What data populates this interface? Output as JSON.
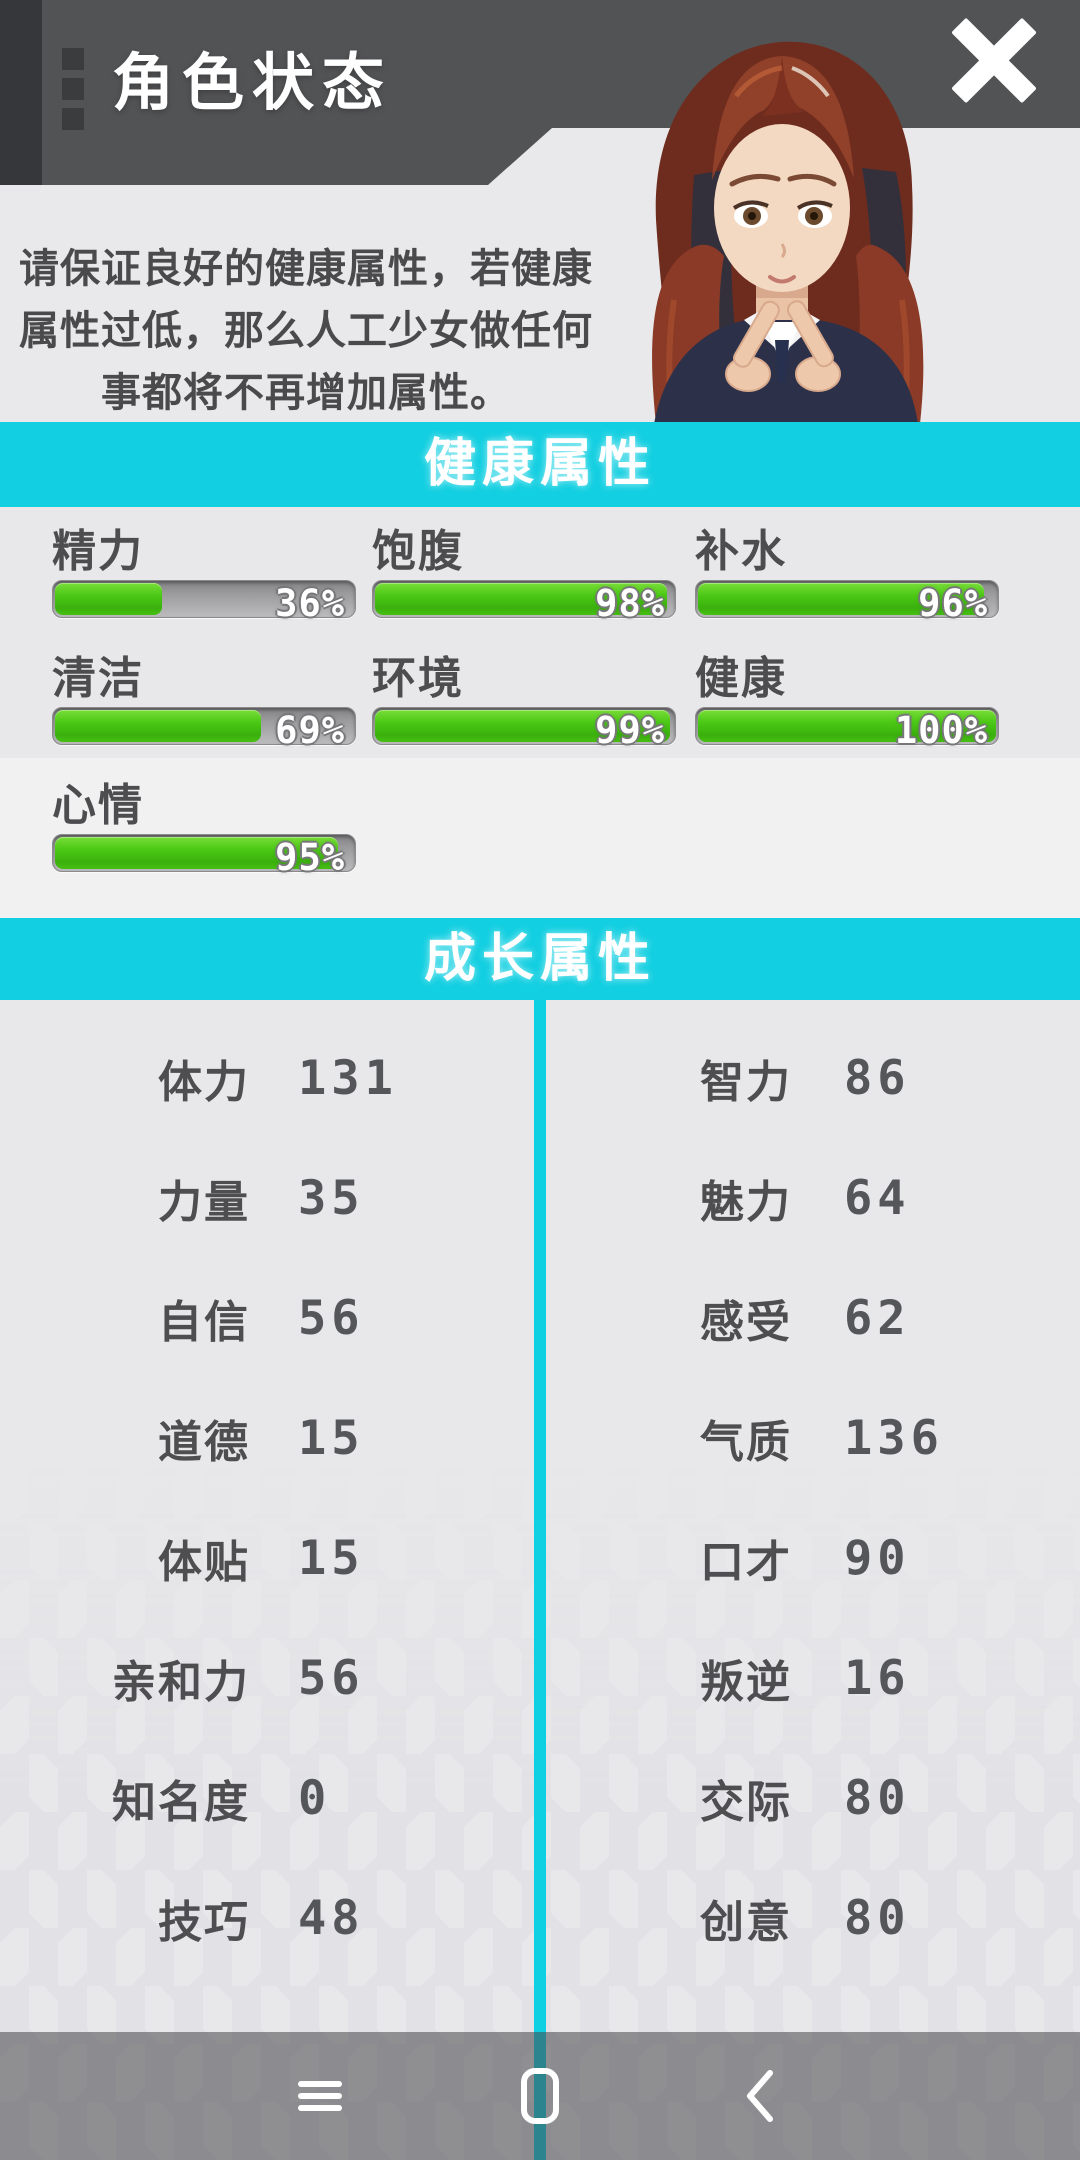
{
  "app": {
    "title": "角色状态"
  },
  "header": {
    "close_icon": "x-close"
  },
  "intro": {
    "lines": [
      "请保证良好的健康属性，若健康",
      "属性过低，那么人工少女做任何",
      "事都将不再增加属性。"
    ],
    "full_text": "请保证良好的健康属性，若健康属性过低，那么人工少女做任何事都将不再增加属性。"
  },
  "health_section": {
    "title": "健康属性",
    "stats": [
      {
        "label": "精力",
        "percent": 36
      },
      {
        "label": "饱腹",
        "percent": 98
      },
      {
        "label": "补水",
        "percent": 96
      },
      {
        "label": "清洁",
        "percent": 69
      },
      {
        "label": "环境",
        "percent": 99
      },
      {
        "label": "健康",
        "percent": 100
      },
      {
        "label": "心情",
        "percent": 95
      }
    ]
  },
  "growth_section": {
    "title": "成长属性",
    "left": [
      {
        "label": "体力",
        "value": "131"
      },
      {
        "label": "力量",
        "value": "35"
      },
      {
        "label": "自信",
        "value": "56"
      },
      {
        "label": "道德",
        "value": "15"
      },
      {
        "label": "体贴",
        "value": "15"
      },
      {
        "label": "亲和力",
        "value": "56"
      },
      {
        "label": "知名度",
        "value": "0"
      },
      {
        "label": "技巧",
        "value": "48"
      }
    ],
    "right": [
      {
        "label": "智力",
        "value": "86"
      },
      {
        "label": "魅力",
        "value": "64"
      },
      {
        "label": "感受",
        "value": "62"
      },
      {
        "label": "气质",
        "value": "136"
      },
      {
        "label": "口才",
        "value": "90"
      },
      {
        "label": "叛逆",
        "value": "16"
      },
      {
        "label": "交际",
        "value": "80"
      },
      {
        "label": "创意",
        "value": "80"
      }
    ]
  },
  "nav": {
    "items": [
      "recents",
      "home",
      "back"
    ]
  },
  "colors": {
    "accent": "#12cfe1",
    "divider": "#0fd0e2",
    "bar_green": "#46c713",
    "bar_track": "#a3a3a5",
    "header_gray": "#525355",
    "header_strip": "#35373a",
    "background": "#e9e9eb",
    "text_dark": "#4d4d4f"
  }
}
